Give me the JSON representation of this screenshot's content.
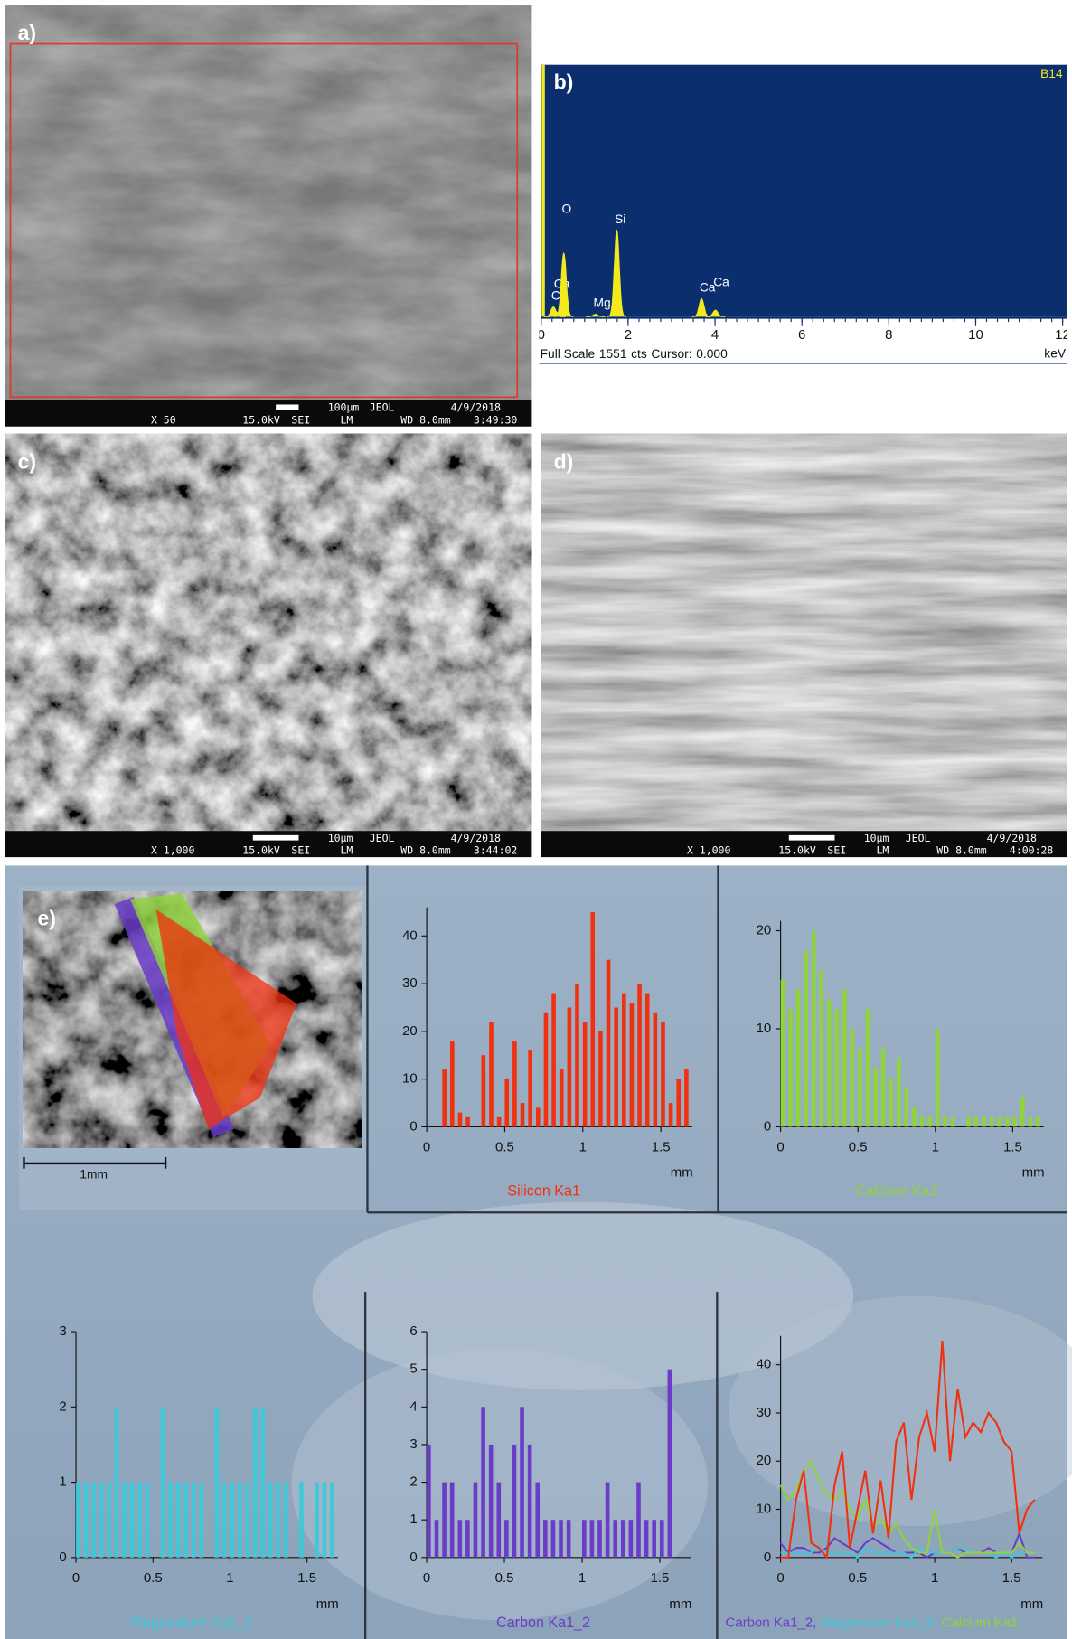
{
  "sem_images": [
    {
      "label": "a)",
      "scale": "100μm",
      "maker": "JEOL",
      "date": "4/9/2018",
      "magnification": "X 50",
      "voltage": "15.0kV",
      "mode": "SEI",
      "lens": "LM",
      "working_distance": "WD 8.0mm",
      "time": "3:49:30"
    },
    {
      "label": "c)",
      "scale": "10μm",
      "maker": "JEOL",
      "date": "4/9/2018",
      "magnification": "X 1,000",
      "voltage": "15.0kV",
      "mode": "SEI",
      "lens": "LM",
      "working_distance": "WD 8.0mm",
      "time": "3:44:02"
    },
    {
      "label": "d)",
      "scale": "10μm",
      "maker": "JEOL",
      "date": "4/9/2018",
      "magnification": "X 1,000",
      "voltage": "15.0kV",
      "mode": "SEI",
      "lens": "LM",
      "working_distance": "WD 8.0mm",
      "time": "4:00:28"
    }
  ],
  "spectrum": {
    "label": "b)",
    "sample": "B14",
    "full_scale_label": "Full Scale",
    "full_scale": 1551,
    "count_unit": "cts",
    "cursor_label": "Cursor:",
    "cursor": {
      "value": 0,
      "label": "0.000"
    },
    "x_unit": "keV",
    "xlim": [
      0,
      12.1
    ],
    "xticks": [
      0,
      2,
      4,
      6,
      8,
      10,
      12
    ],
    "ylim": [
      0,
      1551
    ],
    "color": "#f2ea1c",
    "peaks": [
      {
        "label": "C",
        "energy": 0.28,
        "counts": 60
      },
      {
        "label": "Ca",
        "energy": 0.34,
        "counts": 30
      },
      {
        "label": "O",
        "energy": 0.52,
        "counts": 390
      },
      {
        "label": "Mg",
        "energy": 1.25,
        "counts": 15
      },
      {
        "label": "Si",
        "energy": 1.74,
        "counts": 530
      },
      {
        "label": "Ca",
        "energy": 3.69,
        "counts": 110
      },
      {
        "label": "Ca",
        "energy": 4.01,
        "counts": 40
      }
    ]
  },
  "line_scan": {
    "label": "e)",
    "image_scale": "1mm",
    "x_unit": "mm",
    "xlim": [
      0,
      1.7
    ],
    "xticks": [
      0,
      0.5,
      1,
      1.5
    ],
    "x": [
      0,
      0.05,
      0.1,
      0.15,
      0.2,
      0.25,
      0.3,
      0.35,
      0.4,
      0.45,
      0.5,
      0.55,
      0.6,
      0.65,
      0.7,
      0.75,
      0.8,
      0.85,
      0.9,
      0.95,
      1,
      1.05,
      1.1,
      1.15,
      1.2,
      1.25,
      1.3,
      1.35,
      1.4,
      1.45,
      1.5,
      1.55,
      1.6,
      1.65
    ],
    "charts": [
      {
        "name": "Silicon Ka1",
        "color": "#f0300f",
        "ylim": [
          0,
          46
        ],
        "yticks": [
          0,
          10,
          20,
          30,
          40
        ],
        "values": [
          0,
          0,
          12,
          18,
          3,
          2,
          0,
          15,
          22,
          2,
          10,
          18,
          5,
          16,
          4,
          24,
          28,
          12,
          25,
          30,
          22,
          45,
          20,
          35,
          25,
          28,
          26,
          30,
          28,
          24,
          22,
          5,
          10,
          12
        ]
      },
      {
        "name": "Calcium Ka1",
        "color": "#8fd43a",
        "ylim": [
          0,
          21
        ],
        "yticks": [
          0,
          10,
          20
        ],
        "values": [
          15,
          12,
          14,
          18,
          20,
          16,
          13,
          12,
          14,
          10,
          8,
          12,
          6,
          8,
          5,
          7,
          4,
          2,
          1,
          1,
          10,
          1,
          1,
          0,
          1,
          1,
          1,
          1,
          1,
          1,
          1,
          3,
          1,
          1
        ]
      },
      {
        "name": "Magnesium Ka1_2",
        "color": "#3ec8d8",
        "ylim": [
          0,
          3
        ],
        "yticks": [
          0,
          1,
          2,
          3
        ],
        "values": [
          1,
          1,
          1,
          1,
          1,
          2,
          1,
          1,
          1,
          1,
          0,
          2,
          1,
          1,
          1,
          1,
          1,
          0,
          2,
          1,
          1,
          1,
          1,
          2,
          2,
          1,
          1,
          1,
          0,
          1,
          0,
          1,
          1,
          1
        ]
      },
      {
        "name": "Carbon Ka1_2",
        "color": "#6a3cc8",
        "ylim": [
          0,
          6
        ],
        "yticks": [
          0,
          1,
          2,
          3,
          4,
          5,
          6
        ],
        "values": [
          3,
          1,
          2,
          2,
          1,
          1,
          2,
          4,
          3,
          2,
          1,
          3,
          4,
          3,
          2,
          1,
          1,
          1,
          1,
          0,
          1,
          1,
          1,
          2,
          1,
          1,
          1,
          2,
          1,
          1,
          1,
          5,
          0,
          0
        ]
      }
    ],
    "overlay": {
      "ylim": [
        0,
        46
      ],
      "yticks": [
        0,
        10,
        20,
        30,
        40
      ],
      "legend": [
        {
          "text": "Carbon Ka1_2,",
          "color": "#6a3cc8"
        },
        {
          "text": "Magnesium Ka1_2,",
          "color": "#3ec8d8"
        },
        {
          "text": "Calcium Ka1",
          "color": "#8fd43a"
        }
      ]
    }
  }
}
